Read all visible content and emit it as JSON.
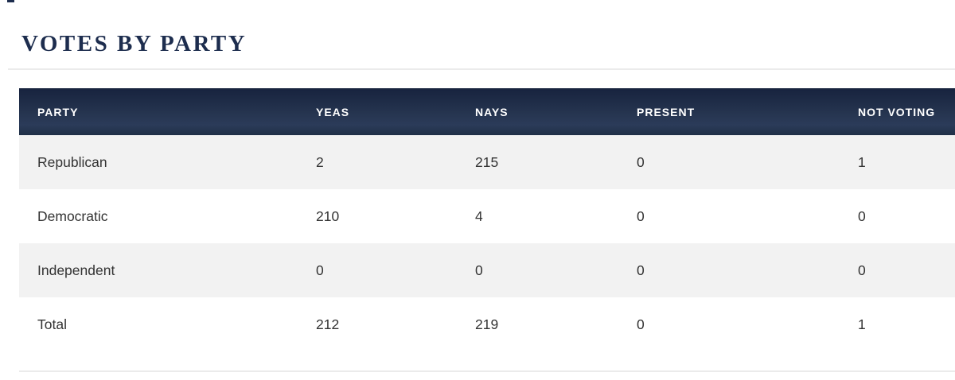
{
  "page": {
    "title": "VOTES BY PARTY"
  },
  "table": {
    "columns": [
      "PARTY",
      "YEAS",
      "NAYS",
      "PRESENT",
      "NOT VOTING"
    ],
    "rows": [
      {
        "party": "Republican",
        "yeas": "2",
        "nays": "215",
        "present": "0",
        "not_voting": "1"
      },
      {
        "party": "Democratic",
        "yeas": "210",
        "nays": "4",
        "present": "0",
        "not_voting": "0"
      },
      {
        "party": "Independent",
        "yeas": "0",
        "nays": "0",
        "present": "0",
        "not_voting": "0"
      },
      {
        "party": "Total",
        "yeas": "212",
        "nays": "219",
        "present": "0",
        "not_voting": "1"
      }
    ]
  },
  "colors": {
    "header_navy": "#1e2e4c",
    "title_navy": "#1d2d4e",
    "row_alt_gray": "#f2f2f2",
    "body_text": "#333333",
    "divider": "#ebebeb"
  }
}
